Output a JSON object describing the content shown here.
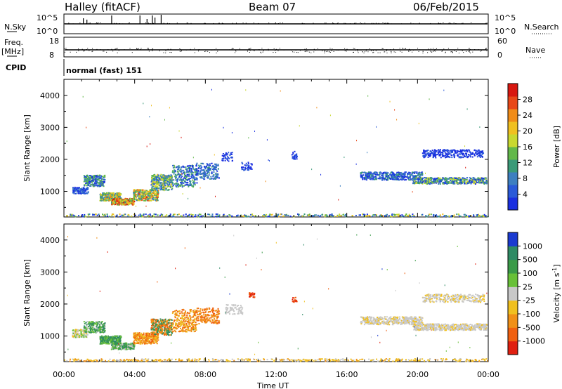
{
  "header": {
    "site": "Halley (fitACF)",
    "beam": "Beam 07",
    "date": "06/Feb/2015"
  },
  "strips": {
    "nsky_label": "N.Sky",
    "nsky_ticks": [
      "10^5",
      "10^0"
    ],
    "nsearch_label": "N.Search",
    "nsearch_ticks": [
      "10^5",
      "10^0"
    ],
    "freq_label": "Freq.",
    "freq_unit": "[MHz]",
    "freq_ticks": [
      "18",
      "8"
    ],
    "nave_label": "Nave",
    "nave_ticks": [
      "60",
      "0"
    ],
    "cpid_label": "CPID",
    "cpid_value": "normal (fast) 151"
  },
  "chart_data": [
    {
      "type": "heatmap",
      "name": "power",
      "ylabel": "Slant Range [km]",
      "yticks": [
        1000,
        2000,
        3000,
        4000
      ],
      "ylim": [
        200,
        4500
      ],
      "xlim": [
        0,
        24
      ],
      "colorbar": {
        "label": "Power [dB]",
        "ticks": [
          "4",
          "8",
          "12",
          "16",
          "20",
          "24",
          "28"
        ],
        "colors": [
          "#1a2fe0",
          "#2a5ad8",
          "#3d7fc0",
          "#3a9a78",
          "#62b84a",
          "#c8d830",
          "#f0c020",
          "#f08c18",
          "#e84818",
          "#d81810"
        ]
      }
    },
    {
      "type": "heatmap",
      "name": "velocity",
      "ylabel": "Slant Range [km]",
      "yticks": [
        1000,
        2000,
        3000,
        4000
      ],
      "ylim": [
        200,
        4500
      ],
      "xlim": [
        0,
        24
      ],
      "colorbar": {
        "label": "Velocity [m s",
        "label_sup": "-1",
        "label_end": "]",
        "ticks": [
          "1000",
          "500",
          "100",
          "25",
          "-25",
          "-100",
          "-500",
          "-1000"
        ],
        "colors": [
          "#1a3ad0",
          "#2e8a64",
          "#3a9a48",
          "#68c038",
          "#c8c8c8",
          "#f0c020",
          "#f09018",
          "#f06010",
          "#e02010"
        ]
      }
    }
  ],
  "time_axis": {
    "ticks": [
      "00:00",
      "04:00",
      "08:00",
      "12:00",
      "16:00",
      "20:00",
      "00:00"
    ],
    "label": "Time UT"
  }
}
